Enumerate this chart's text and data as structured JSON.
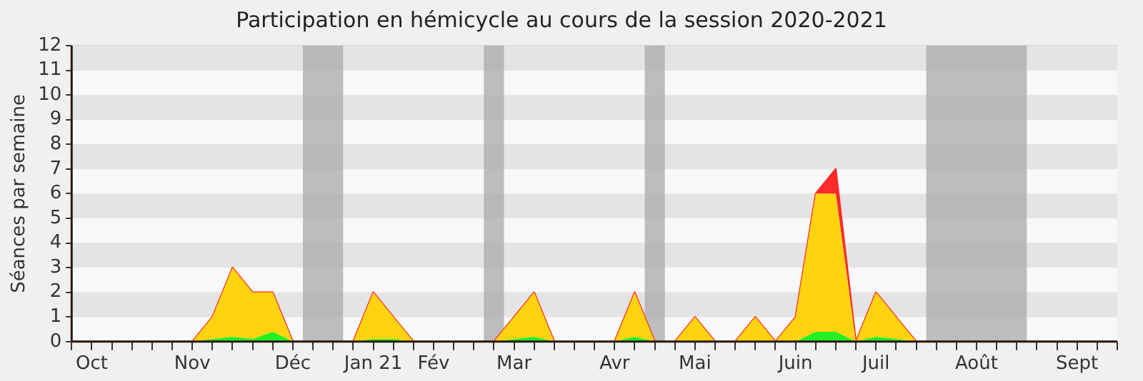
{
  "chart_data": {
    "type": "area",
    "title": "Participation en hémicycle au cours de la session 2020-2021",
    "ylabel": "Séances par semaine",
    "stacked": true,
    "x": [
      "2020-09-28",
      "2020-10-05",
      "2020-10-12",
      "2020-10-19",
      "2020-10-26",
      "2020-11-02",
      "2020-11-09",
      "2020-11-16",
      "2020-11-23",
      "2020-11-30",
      "2020-12-07",
      "2020-12-14",
      "2020-12-21",
      "2020-12-28",
      "2021-01-04",
      "2021-01-11",
      "2021-01-18",
      "2021-01-25",
      "2021-02-01",
      "2021-02-08",
      "2021-02-15",
      "2021-02-22",
      "2021-03-01",
      "2021-03-08",
      "2021-03-15",
      "2021-03-22",
      "2021-03-29",
      "2021-04-05",
      "2021-04-12",
      "2021-04-19",
      "2021-04-26",
      "2021-05-03",
      "2021-05-10",
      "2021-05-17",
      "2021-05-24",
      "2021-05-31",
      "2021-06-07",
      "2021-06-14",
      "2021-06-21",
      "2021-06-28",
      "2021-07-05",
      "2021-07-12",
      "2021-07-19",
      "2021-07-26",
      "2021-08-02",
      "2021-08-09",
      "2021-08-16",
      "2021-08-23",
      "2021-08-30",
      "2021-09-06",
      "2021-09-13",
      "2021-09-20",
      "2021-09-27"
    ],
    "series": [
      {
        "color": "#22f022",
        "values": [
          0,
          0,
          0,
          0,
          0,
          0,
          0,
          0.1,
          0.2,
          0.1,
          0.4,
          0,
          0,
          0,
          0,
          0.1,
          0.1,
          0,
          0,
          0,
          0,
          0,
          0.1,
          0.2,
          0,
          0,
          0,
          0,
          0.2,
          0,
          0,
          0,
          0,
          0,
          0,
          0,
          0,
          0.4,
          0.4,
          0,
          0.2,
          0.1,
          0,
          0,
          0,
          0,
          0,
          0,
          0,
          0,
          0,
          0,
          0
        ]
      },
      {
        "color": "#ffd30f",
        "values": [
          0,
          0,
          0,
          0,
          0,
          0,
          0,
          0.9,
          2.8,
          1.9,
          1.6,
          0,
          0,
          0,
          0,
          1.9,
          0.9,
          0,
          0,
          0,
          0,
          0,
          0.9,
          1.8,
          0,
          0,
          0,
          0,
          1.8,
          0,
          0,
          1,
          0,
          0,
          1,
          0,
          1,
          5.6,
          5.6,
          0,
          1.8,
          0.9,
          0,
          0,
          0,
          0,
          0,
          0,
          0,
          0,
          0,
          0,
          0
        ]
      },
      {
        "color": "#ff2a2a",
        "values": [
          0,
          0,
          0,
          0,
          0,
          0,
          0,
          0,
          0,
          0,
          0,
          0,
          0,
          0,
          0,
          0,
          0,
          0,
          0,
          0,
          0,
          0,
          0,
          0,
          0,
          0,
          0,
          0,
          0,
          0,
          0,
          0,
          0,
          0,
          0,
          0,
          0,
          0,
          1,
          0,
          0,
          0,
          0,
          0,
          0,
          0,
          0,
          0,
          0,
          0,
          0,
          0,
          0
        ]
      }
    ],
    "xlim": [
      "2020-09-28",
      "2021-09-27"
    ],
    "xticks": [
      {
        "value": "2020-09-28",
        "label": null
      },
      {
        "value": "2020-10-05",
        "label": "Oct"
      },
      {
        "value": "2020-10-12",
        "label": null
      },
      {
        "value": "2020-10-19",
        "label": null
      },
      {
        "value": "2020-10-26",
        "label": null
      },
      {
        "value": "2020-11-02",
        "label": null
      },
      {
        "value": "2020-11-09",
        "label": "Nov"
      },
      {
        "value": "2020-11-16",
        "label": null
      },
      {
        "value": "2020-11-23",
        "label": null
      },
      {
        "value": "2020-11-30",
        "label": null
      },
      {
        "value": "2020-12-07",
        "label": null
      },
      {
        "value": "2020-12-14",
        "label": "Déc"
      },
      {
        "value": "2020-12-21",
        "label": null
      },
      {
        "value": "2020-12-28",
        "label": null
      },
      {
        "value": "2021-01-04",
        "label": null
      },
      {
        "value": "2021-01-11",
        "label": "Jan 21"
      },
      {
        "value": "2021-01-18",
        "label": null
      },
      {
        "value": "2021-01-25",
        "label": null
      },
      {
        "value": "2021-02-01",
        "label": "Fév"
      },
      {
        "value": "2021-02-08",
        "label": null
      },
      {
        "value": "2021-02-15",
        "label": null
      },
      {
        "value": "2021-02-22",
        "label": null
      },
      {
        "value": "2021-03-01",
        "label": "Mar"
      },
      {
        "value": "2021-03-08",
        "label": null
      },
      {
        "value": "2021-03-15",
        "label": null
      },
      {
        "value": "2021-03-22",
        "label": null
      },
      {
        "value": "2021-03-29",
        "label": null
      },
      {
        "value": "2021-04-05",
        "label": "Avr"
      },
      {
        "value": "2021-04-12",
        "label": null
      },
      {
        "value": "2021-04-19",
        "label": null
      },
      {
        "value": "2021-04-26",
        "label": null
      },
      {
        "value": "2021-05-03",
        "label": "Mai"
      },
      {
        "value": "2021-05-10",
        "label": null
      },
      {
        "value": "2021-05-17",
        "label": null
      },
      {
        "value": "2021-05-24",
        "label": null
      },
      {
        "value": "2021-05-31",
        "label": null
      },
      {
        "value": "2021-06-07",
        "label": "Juin"
      },
      {
        "value": "2021-06-14",
        "label": null
      },
      {
        "value": "2021-06-21",
        "label": null
      },
      {
        "value": "2021-06-28",
        "label": null
      },
      {
        "value": "2021-07-05",
        "label": "Juil"
      },
      {
        "value": "2021-07-12",
        "label": null
      },
      {
        "value": "2021-07-19",
        "label": null
      },
      {
        "value": "2021-07-26",
        "label": null
      },
      {
        "value": "2021-08-02",
        "label": null
      },
      {
        "value": "2021-08-09",
        "label": "Août"
      },
      {
        "value": "2021-08-16",
        "label": null
      },
      {
        "value": "2021-08-23",
        "label": null
      },
      {
        "value": "2021-08-30",
        "label": null
      },
      {
        "value": "2021-09-06",
        "label": null
      },
      {
        "value": "2021-09-13",
        "label": "Sept"
      },
      {
        "value": "2021-09-20",
        "label": null
      },
      {
        "value": "2021-09-27",
        "label": null
      }
    ],
    "ylim": [
      0,
      12
    ],
    "yticks": [
      0,
      1,
      2,
      3,
      4,
      5,
      6,
      7,
      8,
      9,
      10,
      11,
      12
    ],
    "grid": "y",
    "bands": [
      {
        "axis": "x",
        "from": "2020-12-17T12:00",
        "to": "2020-12-31T12:00",
        "color": "#aaaaaa"
      },
      {
        "axis": "x",
        "from": "2021-02-18T12:00",
        "to": "2021-02-25T12:00",
        "color": "#aaaaaa"
      },
      {
        "axis": "x",
        "from": "2021-04-15T12:00",
        "to": "2021-04-22T12:00",
        "color": "#aaaaaa"
      },
      {
        "axis": "x",
        "from": "2021-07-22T12:00",
        "to": "2021-08-26T12:00",
        "color": "#aaaaaa"
      }
    ]
  }
}
